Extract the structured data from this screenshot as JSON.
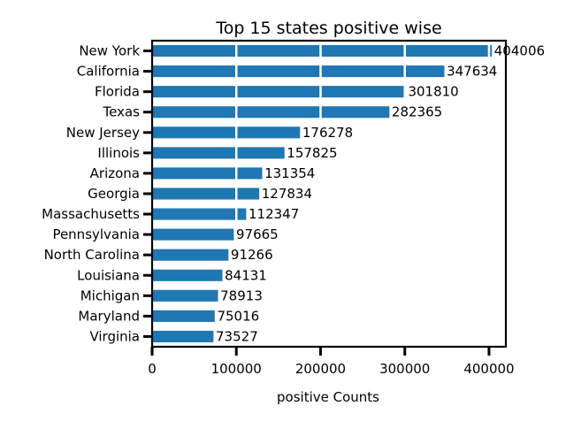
{
  "chart_data": {
    "type": "bar",
    "orientation": "horizontal",
    "title": "Top 15 states positive wise",
    "xlabel": "positive Counts",
    "ylabel": "",
    "categories": [
      "New York",
      "California",
      "Florida",
      "Texas",
      "New Jersey",
      "Illinois",
      "Arizona",
      "Georgia",
      "Massachusetts",
      "Pennsylvania",
      "North Carolina",
      "Louisiana",
      "Michigan",
      "Maryland",
      "Virginia"
    ],
    "values": [
      404006,
      347634,
      301810,
      282365,
      176278,
      157825,
      131354,
      127834,
      112347,
      97665,
      91266,
      84131,
      78913,
      75016,
      73527
    ],
    "xlim": [
      0,
      420000
    ],
    "xticks": [
      0,
      100000,
      200000,
      300000,
      400000
    ],
    "xtick_labels": [
      "0",
      "100000",
      "200000",
      "300000",
      "400000"
    ],
    "bar_color": "#1f77b4",
    "grid": true,
    "style": "xkcd"
  }
}
